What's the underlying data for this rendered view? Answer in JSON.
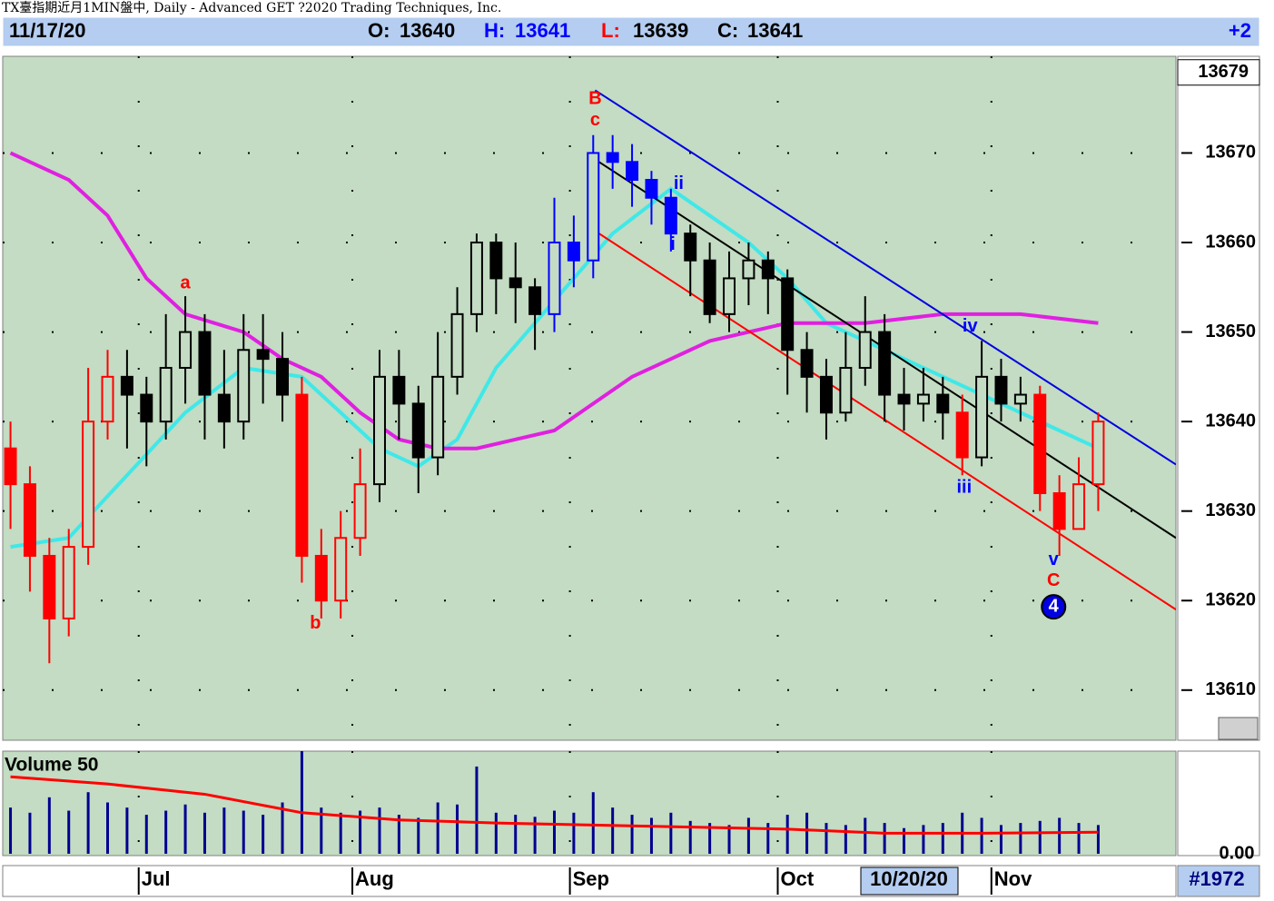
{
  "window_title": "TX臺指期近月1MIN盤中, Daily - Advanced GET ?2020 Trading Techniques, Inc.",
  "header": {
    "date": "11/17/20",
    "open_label": "O:",
    "open": 13640,
    "high_label": "H:",
    "high": 13641,
    "low_label": "L:",
    "low": 13639,
    "close_label": "C:",
    "close": 13641,
    "change": "+2"
  },
  "footer": {
    "highlight_date": "10/20/20",
    "bar_count": "#1972"
  },
  "chart_data": [
    {
      "type": "candlestick",
      "open": [
        13637,
        13633,
        13625,
        13618,
        13626,
        13640,
        13645,
        13643,
        13640,
        13646,
        13650,
        13643,
        13640,
        13648,
        13647,
        13643,
        13625,
        13620,
        13627,
        13633,
        13645,
        13642,
        13636,
        13645,
        13652,
        13660,
        13656,
        13655,
        13652,
        13660,
        13658,
        13670,
        13669,
        13667,
        13665,
        13661,
        13658,
        13652,
        13656,
        13658,
        13656,
        13648,
        13645,
        13641,
        13646,
        13650,
        13643,
        13642,
        13643,
        13641,
        13636,
        13645,
        13642,
        13643,
        13632,
        13628,
        13633
      ],
      "high": [
        13640,
        13635,
        13627,
        13628,
        13646,
        13648,
        13648,
        13645,
        13652,
        13654,
        13652,
        13648,
        13652,
        13652,
        13650,
        13645,
        13628,
        13630,
        13637,
        13648,
        13648,
        13644,
        13650,
        13655,
        13661,
        13661,
        13660,
        13656,
        13665,
        13663,
        13672,
        13672,
        13671,
        13668,
        13666,
        13662,
        13660,
        13659,
        13660,
        13659,
        13657,
        13650,
        13647,
        13650,
        13654,
        13652,
        13646,
        13646,
        13645,
        13643,
        13649,
        13647,
        13645,
        13644,
        13634,
        13636,
        13641
      ],
      "low": [
        13628,
        13621,
        13613,
        13616,
        13624,
        13638,
        13637,
        13635,
        13638,
        13642,
        13638,
        13637,
        13638,
        13642,
        13640,
        13622,
        13618,
        13618,
        13625,
        13631,
        13638,
        13632,
        13634,
        13643,
        13650,
        13652,
        13651,
        13648,
        13650,
        13655,
        13656,
        13666,
        13664,
        13662,
        13659,
        13654,
        13651,
        13650,
        13653,
        13652,
        13643,
        13641,
        13638,
        13640,
        13644,
        13640,
        13639,
        13640,
        13638,
        13634,
        13635,
        13640,
        13640,
        13630,
        13625,
        13628,
        13630
      ],
      "close": [
        13633,
        13625,
        13618,
        13626,
        13640,
        13645,
        13643,
        13640,
        13646,
        13650,
        13643,
        13640,
        13648,
        13647,
        13643,
        13625,
        13620,
        13627,
        13633,
        13645,
        13642,
        13636,
        13645,
        13652,
        13660,
        13656,
        13655,
        13652,
        13660,
        13658,
        13670,
        13669,
        13667,
        13665,
        13661,
        13658,
        13652,
        13656,
        13658,
        13656,
        13648,
        13645,
        13641,
        13646,
        13650,
        13643,
        13642,
        13643,
        13641,
        13636,
        13645,
        13642,
        13643,
        13632,
        13628,
        13633,
        13640
      ],
      "bar_colors": [
        "#ff0000",
        "#ff0000",
        "#ff0000",
        "#ff0000",
        "#ff0000",
        "#ff0000",
        "#000000",
        "#000000",
        "#000000",
        "#000000",
        "#000000",
        "#000000",
        "#000000",
        "#000000",
        "#000000",
        "#ff0000",
        "#ff0000",
        "#ff0000",
        "#ff0000",
        "#000000",
        "#000000",
        "#000000",
        "#000000",
        "#000000",
        "#000000",
        "#000000",
        "#000000",
        "#000000",
        "#0000ff",
        "#0000ff",
        "#0000ff",
        "#0000ff",
        "#0000ff",
        "#0000ff",
        "#0000ff",
        "#000000",
        "#000000",
        "#000000",
        "#000000",
        "#000000",
        "#000000",
        "#000000",
        "#000000",
        "#000000",
        "#000000",
        "#000000",
        "#000000",
        "#000000",
        "#000000",
        "#ff0000",
        "#000000",
        "#000000",
        "#000000",
        "#ff0000",
        "#ff0000",
        "#ff0000",
        "#ff0000"
      ],
      "xlim": [
        -0.4,
        60
      ],
      "ylim": [
        13604.4,
        13680.8
      ],
      "yticks": [
        13610,
        13620,
        13630,
        13640,
        13650,
        13660,
        13670
      ],
      "xticks": [
        {
          "value": 6.6,
          "label": "Jul"
        },
        {
          "value": 17.6,
          "label": "Aug"
        },
        {
          "value": 28.8,
          "label": "Sep"
        },
        {
          "value": 39.5,
          "label": "Oct"
        },
        {
          "value": 50.5,
          "label": "Nov"
        }
      ],
      "grid": true,
      "last_price": 13679,
      "overlays": [
        {
          "color": "#40e8e8",
          "x": [
            0,
            3,
            6,
            9,
            12,
            15,
            17,
            19,
            21,
            23,
            25,
            27,
            29,
            31,
            34,
            36,
            38,
            40,
            42,
            45,
            47,
            49,
            51,
            53,
            56
          ],
          "values": [
            13626,
            13627,
            13634,
            13641,
            13646,
            13645,
            13641,
            13637,
            13635,
            13638,
            13646,
            13651,
            13656,
            13661,
            13666,
            13663,
            13660,
            13656,
            13651,
            13648,
            13646,
            13644,
            13642,
            13640,
            13637
          ]
        },
        {
          "color": "#e020e0",
          "x": [
            0,
            3,
            5,
            7,
            9,
            12,
            14,
            16,
            18,
            20,
            22,
            24,
            26,
            28,
            30,
            32,
            34,
            36,
            38,
            40,
            44,
            48,
            52,
            56
          ],
          "values": [
            13670,
            13667,
            13663,
            13656,
            13652,
            13650,
            13647,
            13645,
            13641,
            13638,
            13637,
            13637,
            13638,
            13639,
            13642,
            13645,
            13647,
            13649,
            13650,
            13651,
            13651,
            13652,
            13652,
            13651
          ]
        }
      ],
      "trendlines": [
        {
          "color": "#0000e0",
          "x": [
            30.1,
            60
          ],
          "values": [
            13677,
            13635.2
          ]
        },
        {
          "color": "#000000",
          "x": [
            30.3,
            60
          ],
          "values": [
            13669,
            13627
          ]
        },
        {
          "color": "#ff0000",
          "x": [
            30.3,
            60
          ],
          "values": [
            13661,
            13619
          ]
        }
      ],
      "annotations": [
        {
          "text": "B",
          "x": 30.1,
          "y": 13676,
          "color": "#ff0000"
        },
        {
          "text": "c",
          "x": 30.1,
          "y": 13673.6,
          "color": "#ff0000"
        },
        {
          "text": "a",
          "x": 9.0,
          "y": 13655.4,
          "color": "#ff0000"
        },
        {
          "text": "b",
          "x": 15.7,
          "y": 13617.4,
          "color": "#ff0000"
        },
        {
          "text": "ii",
          "x": 34.4,
          "y": 13666.5,
          "color": "#0000ff"
        },
        {
          "text": "i",
          "x": 34.1,
          "y": 13659.7,
          "color": "#0000ff"
        },
        {
          "text": "iv",
          "x": 49.4,
          "y": 13650.6,
          "color": "#0000ff"
        },
        {
          "text": "iii",
          "x": 49.1,
          "y": 13632.6,
          "color": "#0000ff"
        },
        {
          "text": "v",
          "x": 53.7,
          "y": 13624.5,
          "color": "#0000ff"
        },
        {
          "text": "C",
          "x": 53.7,
          "y": 13622.2,
          "color": "#ff0000"
        },
        {
          "text": "4",
          "x": 53.7,
          "y": 13619.3,
          "color": "#ffffff",
          "circle": "#0000e0"
        }
      ]
    },
    {
      "type": "bar",
      "title": "Volume 50",
      "color": "#000090",
      "values": [
        45,
        40,
        55,
        42,
        60,
        50,
        45,
        38,
        42,
        48,
        40,
        45,
        42,
        38,
        50,
        100,
        45,
        40,
        42,
        45,
        38,
        35,
        50,
        48,
        85,
        40,
        38,
        36,
        42,
        40,
        60,
        45,
        38,
        35,
        40,
        32,
        30,
        28,
        35,
        30,
        38,
        40,
        30,
        28,
        35,
        30,
        25,
        28,
        30,
        40,
        35,
        28,
        30,
        32,
        35,
        30,
        28
      ],
      "average": {
        "color": "#ff0000",
        "x": [
          0,
          5,
          10,
          15,
          20,
          25,
          30,
          35,
          40,
          45,
          50,
          56
        ],
        "values": [
          75,
          68,
          58,
          40,
          33,
          30,
          28,
          26,
          24,
          20,
          20,
          21
        ]
      },
      "ylim": [
        0,
        100
      ],
      "yticks": [
        {
          "value": 0,
          "label": "0.00"
        }
      ]
    }
  ]
}
